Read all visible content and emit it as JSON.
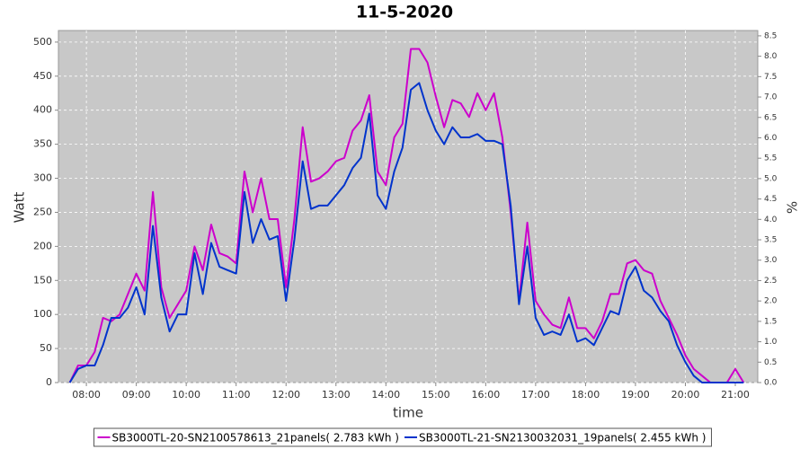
{
  "chart_data": {
    "type": "line",
    "title": "11-5-2020",
    "x_label": "time",
    "y_label": "Watt",
    "y2_label": "%",
    "x": [
      7.667,
      7.833,
      8,
      8.167,
      8.333,
      8.5,
      8.667,
      8.833,
      9,
      9.167,
      9.333,
      9.5,
      9.667,
      9.833,
      10,
      10.167,
      10.333,
      10.5,
      10.667,
      10.833,
      11,
      11.167,
      11.333,
      11.5,
      11.667,
      11.833,
      12,
      12.167,
      12.333,
      12.5,
      12.667,
      12.833,
      13,
      13.167,
      13.333,
      13.5,
      13.667,
      13.833,
      14,
      14.167,
      14.333,
      14.5,
      14.667,
      14.833,
      15,
      15.167,
      15.333,
      15.5,
      15.667,
      15.833,
      16,
      16.167,
      16.333,
      16.5,
      16.667,
      16.833,
      17,
      17.167,
      17.333,
      17.5,
      17.667,
      17.833,
      18,
      18.167,
      18.333,
      18.5,
      18.667,
      18.833,
      19,
      19.167,
      19.333,
      19.5,
      19.667,
      19.833,
      20,
      20.167,
      20.333,
      20.5,
      20.667,
      20.833,
      21,
      21.167
    ],
    "series": [
      {
        "name": "SB3000TL-20-SN2100578613_21panels( 2.783 kWh )",
        "color": "#cc00cc",
        "values": [
          0,
          25,
          25,
          45,
          95,
          90,
          100,
          130,
          160,
          135,
          280,
          140,
          95,
          115,
          135,
          200,
          165,
          232,
          190,
          185,
          175,
          310,
          250,
          300,
          240,
          240,
          140,
          240,
          375,
          295,
          300,
          310,
          325,
          330,
          370,
          385,
          422,
          310,
          290,
          360,
          380,
          490,
          490,
          470,
          420,
          375,
          415,
          410,
          390,
          425,
          400,
          425,
          360,
          250,
          120,
          235,
          120,
          100,
          85,
          80,
          125,
          80,
          80,
          65,
          90,
          130,
          130,
          175,
          180,
          165,
          160,
          120,
          95,
          70,
          40,
          20,
          10,
          0,
          0,
          0,
          20,
          0
        ]
      },
      {
        "name": "SB3000TL-21-SN2130032031_19panels( 2.455 kWh )",
        "color": "#0033cc",
        "values": [
          0,
          20,
          25,
          25,
          55,
          95,
          95,
          110,
          140,
          100,
          230,
          125,
          75,
          100,
          100,
          190,
          130,
          205,
          170,
          165,
          160,
          280,
          205,
          240,
          210,
          215,
          120,
          210,
          325,
          255,
          260,
          260,
          275,
          290,
          315,
          330,
          395,
          275,
          255,
          310,
          345,
          430,
          440,
          400,
          370,
          350,
          375,
          360,
          360,
          365,
          355,
          355,
          350,
          260,
          115,
          200,
          95,
          70,
          75,
          70,
          100,
          60,
          65,
          55,
          80,
          105,
          100,
          150,
          170,
          135,
          125,
          105,
          90,
          55,
          30,
          10,
          0,
          0,
          0,
          0,
          0,
          0
        ]
      }
    ],
    "xlim": [
      7.44,
      21.45
    ],
    "xticks": [
      {
        "value": 8,
        "label": "08:00"
      },
      {
        "value": 9,
        "label": "09:00"
      },
      {
        "value": 10,
        "label": "10:00"
      },
      {
        "value": 11,
        "label": "11:00"
      },
      {
        "value": 12,
        "label": "12:00"
      },
      {
        "value": 13,
        "label": "13:00"
      },
      {
        "value": 14,
        "label": "14:00"
      },
      {
        "value": 15,
        "label": "15:00"
      },
      {
        "value": 16,
        "label": "16:00"
      },
      {
        "value": 17,
        "label": "17:00"
      },
      {
        "value": 18,
        "label": "18:00"
      },
      {
        "value": 19,
        "label": "19:00"
      },
      {
        "value": 20,
        "label": "20:00"
      },
      {
        "value": 21,
        "label": "21:00"
      }
    ],
    "ylim": [
      0,
      517
    ],
    "yticks": [
      0,
      50,
      100,
      150,
      200,
      250,
      300,
      350,
      400,
      450,
      500
    ],
    "y2lim": [
      0,
      8.63
    ],
    "y2ticks": [
      {
        "value": 0,
        "label": "0.0"
      },
      0.5,
      {
        "value": 1,
        "label": "1.0"
      },
      1.5,
      {
        "value": 2,
        "label": "2.0"
      },
      2.5,
      {
        "value": 3,
        "label": "3.0"
      },
      3.5,
      {
        "value": 4,
        "label": "4.0"
      },
      4.5,
      {
        "value": 5,
        "label": "5.0"
      },
      5.5,
      {
        "value": 6,
        "label": "6.0"
      },
      6.5,
      {
        "value": 7,
        "label": "7.0"
      },
      7.5,
      {
        "value": 8,
        "label": "8.0"
      },
      8.5
    ],
    "grid": true,
    "legend": "bottom"
  }
}
